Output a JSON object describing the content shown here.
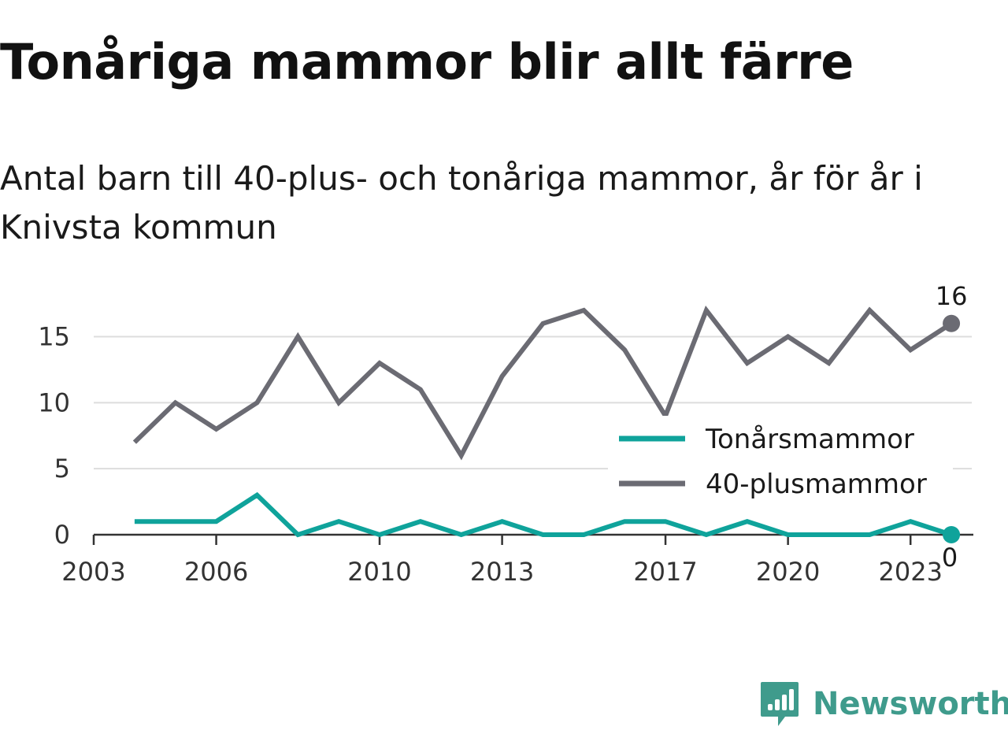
{
  "title": "Tonåriga mammor blir allt färre",
  "subtitle": "Antal barn till 40-plus- och tonåriga mammor, år för år i Knivsta kommun",
  "brand": {
    "name": "Newsworthy",
    "color": "#3f9b8c",
    "icon": "bar-chart-speech-bubble-icon"
  },
  "chart_data": {
    "type": "line",
    "x": [
      2004,
      2005,
      2006,
      2007,
      2008,
      2009,
      2010,
      2011,
      2012,
      2013,
      2014,
      2015,
      2016,
      2017,
      2018,
      2019,
      2020,
      2021,
      2022,
      2023,
      2024
    ],
    "series": [
      {
        "name": "Tonårsmammor",
        "color": "#0fa39b",
        "values": [
          1,
          1,
          1,
          3,
          0,
          1,
          0,
          1,
          0,
          1,
          0,
          0,
          1,
          1,
          0,
          1,
          0,
          0,
          0,
          1,
          0
        ],
        "end_label": "0"
      },
      {
        "name": "40-plusmammor",
        "color": "#6b6b73",
        "values": [
          7,
          10,
          8,
          10,
          15,
          10,
          13,
          11,
          6,
          12,
          16,
          17,
          14,
          9,
          17,
          13,
          15,
          13,
          17,
          14,
          16
        ],
        "end_label": "16"
      }
    ],
    "x_ticks": [
      2003,
      2006,
      2010,
      2013,
      2017,
      2020,
      2023
    ],
    "x_tick_labels": [
      "2003",
      "2006",
      "2010",
      "2013",
      "2017",
      "2020",
      "2023"
    ],
    "y_ticks": [
      0,
      5,
      10,
      15
    ],
    "y_tick_labels": [
      "0",
      "5",
      "10",
      "15"
    ],
    "xlim": [
      2003,
      2024.5
    ],
    "ylim": [
      0,
      17
    ],
    "grid": true,
    "legend_position": "lower-right",
    "xlabel": "",
    "ylabel": ""
  }
}
